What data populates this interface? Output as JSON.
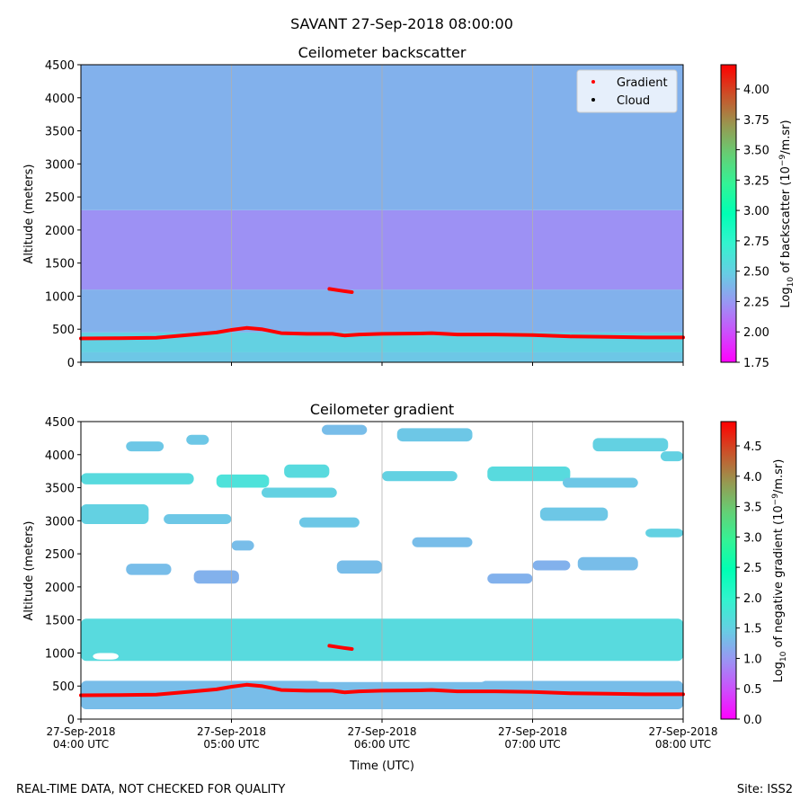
{
  "figure": {
    "title": "SAVANT 27-Sep-2018 08:00:00",
    "footer_left": "REAL-TIME DATA, NOT CHECKED FOR QUALITY",
    "footer_right": "Site: ISS2"
  },
  "colors": {
    "gradient_marker": "#ff0000",
    "cloud_marker": "#000000",
    "colormap": "rainbow"
  },
  "chart_data": [
    {
      "type": "heatmap",
      "title": "Ceilometer backscatter",
      "ylabel": "Altitude (meters)",
      "xlabel": "",
      "x_ticks": [
        "27-Sep-2018\n04:00 UTC",
        "27-Sep-2018\n05:00 UTC",
        "27-Sep-2018\n06:00 UTC",
        "27-Sep-2018\n07:00 UTC",
        "27-Sep-2018\n08:00 UTC"
      ],
      "x_range_hours": [
        4,
        8
      ],
      "ylim": [
        0,
        4500
      ],
      "y_ticks": [
        0,
        500,
        1000,
        1500,
        2000,
        2500,
        3000,
        3500,
        4000,
        4500
      ],
      "vertical_gridlines": true,
      "colorbar": {
        "label": "Log10 of backscatter (10-9/m.sr)",
        "label_main": "Log",
        "label_sub": "10",
        "label_mid": " of backscatter (10",
        "label_sup": "−9",
        "label_end": "/m.sr)",
        "range": [
          1.75,
          4.2
        ],
        "ticks": [
          "1.75",
          "2.00",
          "2.25",
          "2.50",
          "2.75",
          "3.00",
          "3.25",
          "3.50",
          "3.75",
          "4.00"
        ]
      },
      "legend": {
        "placement": "top-right",
        "entries": [
          "Gradient",
          "Cloud"
        ]
      },
      "field_description_levels": [
        {
          "alt_from": 0,
          "alt_to": 150,
          "level": 2.45
        },
        {
          "alt_from": 150,
          "alt_to": 450,
          "level": 2.5
        },
        {
          "alt_from": 450,
          "alt_to": 1100,
          "level": 2.35
        },
        {
          "alt_from": 1100,
          "alt_to": 2300,
          "level": 2.22
        },
        {
          "alt_from": 2300,
          "alt_to": 4500,
          "level": 2.35
        }
      ],
      "series": [
        {
          "name": "Gradient",
          "x": [
            4.0,
            4.25,
            4.5,
            4.75,
            4.9,
            5.0,
            5.1,
            5.2,
            5.33,
            5.5,
            5.67,
            5.75,
            5.85,
            6.0,
            6.25,
            6.33,
            6.5,
            6.75,
            7.0,
            7.25,
            7.5,
            7.75,
            8.0
          ],
          "y": [
            360,
            365,
            370,
            420,
            450,
            490,
            520,
            500,
            440,
            430,
            430,
            405,
            420,
            430,
            435,
            440,
            420,
            420,
            410,
            390,
            385,
            375,
            375
          ]
        },
        {
          "name": "Gradient",
          "x": [
            5.65,
            5.72,
            5.8
          ],
          "y": [
            1110,
            1085,
            1060
          ]
        }
      ]
    },
    {
      "type": "heatmap",
      "title": "Ceilometer gradient",
      "ylabel": "Altitude (meters)",
      "xlabel": "Time (UTC)",
      "x_ticks": [
        "27-Sep-2018\n04:00 UTC",
        "27-Sep-2018\n05:00 UTC",
        "27-Sep-2018\n06:00 UTC",
        "27-Sep-2018\n07:00 UTC",
        "27-Sep-2018\n08:00 UTC"
      ],
      "x_range_hours": [
        4,
        8
      ],
      "ylim": [
        0,
        4500
      ],
      "y_ticks": [
        0,
        500,
        1000,
        1500,
        2000,
        2500,
        3000,
        3500,
        4000,
        4500
      ],
      "vertical_gridlines": true,
      "colorbar": {
        "label": "Log10 of negative gradient (10-9/m.sr)",
        "label_main": "Log",
        "label_sub": "10",
        "label_mid": " of negative gradient (10",
        "label_sup": "−9",
        "label_end": "/m.sr)",
        "range": [
          0,
          4.9
        ],
        "ticks": [
          "0.0",
          "0.5",
          "1.0",
          "1.5",
          "2.0",
          "2.5",
          "3.0",
          "3.5",
          "4.0",
          "4.5"
        ]
      },
      "series": [
        {
          "name": "Gradient",
          "x": [
            4.0,
            4.25,
            4.5,
            4.75,
            4.9,
            5.0,
            5.1,
            5.2,
            5.33,
            5.5,
            5.67,
            5.75,
            5.85,
            6.0,
            6.25,
            6.33,
            6.5,
            6.75,
            7.0,
            7.25,
            7.5,
            7.75,
            8.0
          ],
          "y": [
            360,
            365,
            370,
            420,
            450,
            490,
            520,
            500,
            440,
            430,
            430,
            405,
            420,
            430,
            435,
            440,
            420,
            420,
            410,
            390,
            385,
            375,
            375
          ]
        },
        {
          "name": "Gradient",
          "x": [
            5.65,
            5.72,
            5.8
          ],
          "y": [
            1110,
            1085,
            1060
          ]
        }
      ],
      "patches": [
        {
          "x0": 4.0,
          "x1": 8.0,
          "y0": 150,
          "y1": 580,
          "level": 1.3
        },
        {
          "x0": 4.0,
          "x1": 8.0,
          "y0": 880,
          "y1": 1520,
          "level": 1.6
        },
        {
          "x0": 4.0,
          "x1": 4.75,
          "y0": 3550,
          "y1": 3720,
          "level": 1.6
        },
        {
          "x0": 4.9,
          "x1": 5.25,
          "y0": 3500,
          "y1": 3700,
          "level": 1.7
        },
        {
          "x0": 5.2,
          "x1": 5.7,
          "y0": 3350,
          "y1": 3500,
          "level": 1.5
        },
        {
          "x0": 5.35,
          "x1": 5.65,
          "y0": 3650,
          "y1": 3850,
          "level": 1.6
        },
        {
          "x0": 6.0,
          "x1": 6.5,
          "y0": 3600,
          "y1": 3750,
          "level": 1.5
        },
        {
          "x0": 6.7,
          "x1": 7.25,
          "y0": 3600,
          "y1": 3820,
          "level": 1.6
        },
        {
          "x0": 7.2,
          "x1": 7.7,
          "y0": 3500,
          "y1": 3650,
          "level": 1.4
        },
        {
          "x0": 4.0,
          "x1": 4.45,
          "y0": 2950,
          "y1": 3250,
          "level": 1.5
        },
        {
          "x0": 4.55,
          "x1": 5.0,
          "y0": 2950,
          "y1": 3100,
          "level": 1.4
        },
        {
          "x0": 5.45,
          "x1": 5.85,
          "y0": 2900,
          "y1": 3050,
          "level": 1.4
        },
        {
          "x0": 7.05,
          "x1": 7.5,
          "y0": 3000,
          "y1": 3200,
          "level": 1.4
        },
        {
          "x0": 7.75,
          "x1": 8.0,
          "y0": 2750,
          "y1": 2880,
          "level": 1.5
        },
        {
          "x0": 4.3,
          "x1": 4.55,
          "y0": 4050,
          "y1": 4200,
          "level": 1.4
        },
        {
          "x0": 4.7,
          "x1": 4.85,
          "y0": 4150,
          "y1": 4300,
          "level": 1.4
        },
        {
          "x0": 5.6,
          "x1": 5.9,
          "y0": 4300,
          "y1": 4450,
          "level": 1.3
        },
        {
          "x0": 6.1,
          "x1": 6.6,
          "y0": 4200,
          "y1": 4400,
          "level": 1.4
        },
        {
          "x0": 7.4,
          "x1": 7.9,
          "y0": 4050,
          "y1": 4250,
          "level": 1.5
        },
        {
          "x0": 7.85,
          "x1": 8.0,
          "y0": 3900,
          "y1": 4050,
          "level": 1.5
        },
        {
          "x0": 4.3,
          "x1": 4.6,
          "y0": 2180,
          "y1": 2350,
          "level": 1.3
        },
        {
          "x0": 4.75,
          "x1": 5.05,
          "y0": 2050,
          "y1": 2250,
          "level": 1.2
        },
        {
          "x0": 5.7,
          "x1": 6.0,
          "y0": 2200,
          "y1": 2400,
          "level": 1.3
        },
        {
          "x0": 6.2,
          "x1": 6.6,
          "y0": 2600,
          "y1": 2750,
          "level": 1.3
        },
        {
          "x0": 6.7,
          "x1": 7.0,
          "y0": 2050,
          "y1": 2200,
          "level": 1.2
        },
        {
          "x0": 7.0,
          "x1": 7.25,
          "y0": 2250,
          "y1": 2400,
          "level": 1.2
        },
        {
          "x0": 7.3,
          "x1": 7.7,
          "y0": 2250,
          "y1": 2450,
          "level": 1.3
        },
        {
          "x0": 5.0,
          "x1": 5.15,
          "y0": 2550,
          "y1": 2700,
          "level": 1.3
        }
      ],
      "gaps": [
        {
          "x0": 4.08,
          "x1": 4.25,
          "y0": 900,
          "y1": 1000
        },
        {
          "x0": 6.6,
          "x1": 8.0,
          "y0": 580,
          "y1": 860
        },
        {
          "x0": 5.55,
          "x1": 6.7,
          "y0": 560,
          "y1": 720
        },
        {
          "x0": 7.78,
          "x1": 8.0,
          "y0": 0,
          "y1": 25
        }
      ]
    }
  ]
}
